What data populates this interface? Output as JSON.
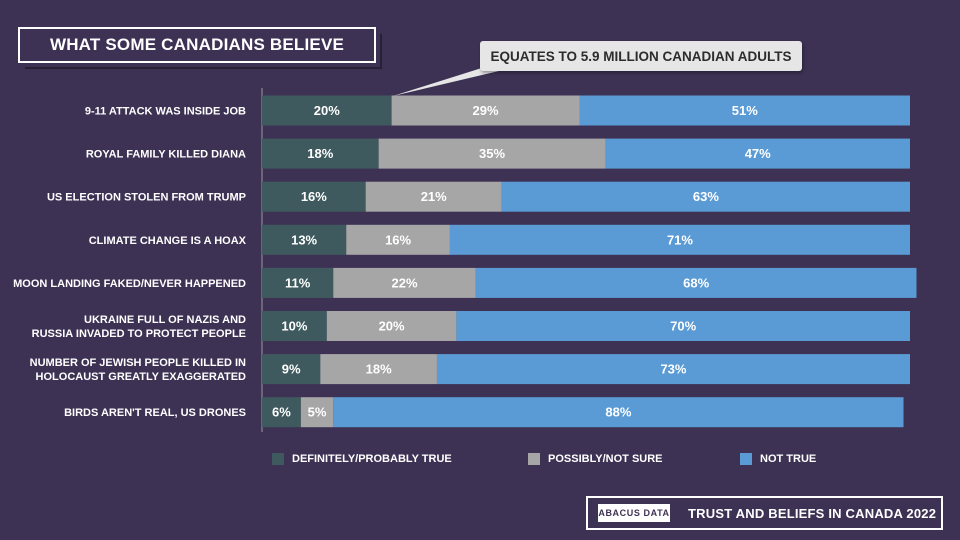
{
  "header": {
    "title": "WHAT SOME CANADIANS BELIEVE",
    "callout": "EQUATES TO 5.9 MILLION CANADIAN ADULTS"
  },
  "colors": {
    "background": "#3e3254",
    "definitely": "#3e5a5e",
    "possibly": "#a6a6a6",
    "not_true": "#5b9bd5"
  },
  "chart_data": {
    "type": "bar",
    "orientation": "horizontal",
    "stacked": true,
    "normalized_to_100": true,
    "categories": [
      [
        "9-11 ATTACK WAS INSIDE JOB"
      ],
      [
        "ROYAL FAMILY KILLED DIANA"
      ],
      [
        "US ELECTION STOLEN FROM TRUMP"
      ],
      [
        "CLIMATE CHANGE IS A HOAX"
      ],
      [
        "MOON LANDING FAKED/NEVER HAPPENED"
      ],
      [
        "UKRAINE FULL OF NAZIS AND",
        "RUSSIA INVADED TO PROTECT PEOPLE"
      ],
      [
        "NUMBER OF JEWISH PEOPLE KILLED IN",
        "HOLOCAUST GREATLY EXAGGERATED"
      ],
      [
        "BIRDS AREN'T REAL, US DRONES"
      ]
    ],
    "series": [
      {
        "name": "DEFINITELY/PROBABLY TRUE",
        "color": "#3e5a5e",
        "values": [
          20,
          18,
          16,
          13,
          11,
          10,
          9,
          6
        ]
      },
      {
        "name": "POSSIBLY/NOT SURE",
        "color": "#a6a6a6",
        "values": [
          29,
          35,
          21,
          16,
          22,
          20,
          18,
          5
        ]
      },
      {
        "name": "NOT TRUE",
        "color": "#5b9bd5",
        "values": [
          51,
          47,
          63,
          71,
          68,
          70,
          73,
          88
        ]
      }
    ],
    "value_suffix": "%",
    "legend_position": "bottom",
    "grid": false
  },
  "footer": {
    "logo": "ABACUS DATA",
    "title": "TRUST AND BELIEFS IN CANADA 2022"
  }
}
